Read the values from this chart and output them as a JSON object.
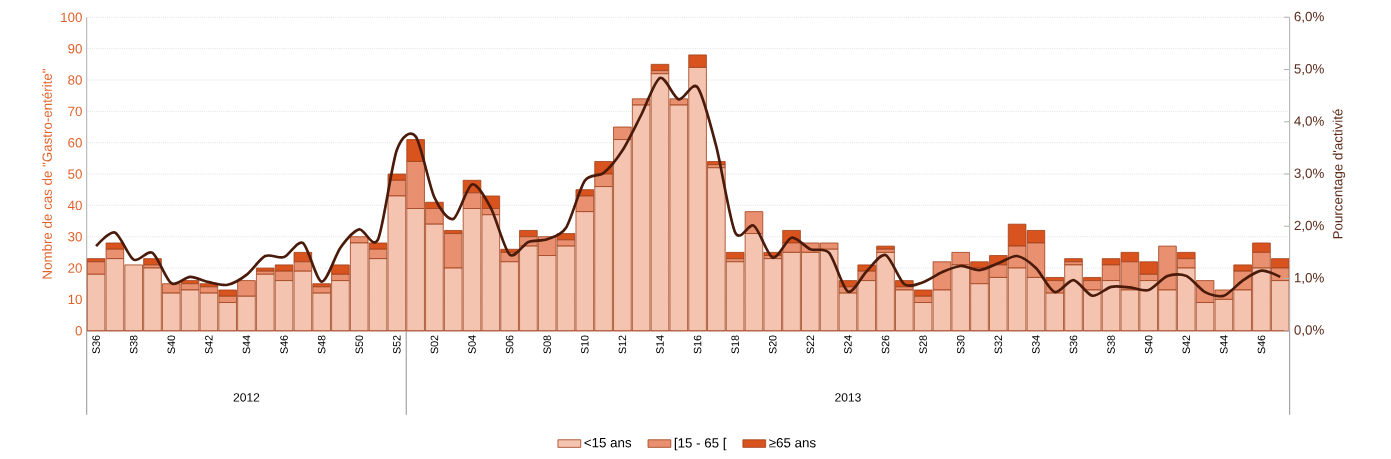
{
  "chart_data": {
    "type": "bar",
    "stacked": true,
    "xlabel": null,
    "ylabel": "Nombre de cas de \"Gastro-entérite\"",
    "y2label": "Pourcentage d'activité",
    "categories": [
      "S36",
      null,
      "S38",
      null,
      "S40",
      null,
      "S42",
      null,
      "S44",
      null,
      "S46",
      null,
      "S48",
      null,
      "S50",
      null,
      "S52",
      null,
      "S02",
      null,
      "S04",
      null,
      "S06",
      null,
      "S08",
      null,
      "S10",
      null,
      "S12",
      null,
      "S14",
      null,
      "S16",
      null,
      "S18",
      null,
      "S20",
      null,
      "S22",
      null,
      "S24",
      null,
      "S26",
      null,
      "S28",
      null,
      "S30",
      null,
      "S32",
      null,
      "S34",
      null,
      "S36",
      null,
      "S38",
      null,
      "S40",
      null,
      "S42",
      null,
      "S44",
      null,
      "S46",
      null
    ],
    "series": [
      {
        "name": "<15 ans",
        "color": "#f4c4b0",
        "values": [
          18,
          23,
          21,
          20,
          12,
          13,
          12,
          9,
          11,
          18,
          16,
          19,
          12,
          16,
          28,
          23,
          43,
          39,
          34,
          20,
          39,
          37,
          22,
          27,
          24,
          27,
          38,
          46,
          61,
          72,
          82,
          72,
          84,
          52,
          22,
          31,
          23,
          25,
          25,
          26,
          12,
          16,
          25,
          13,
          9,
          13,
          21,
          15,
          17,
          20,
          17,
          12,
          21,
          13,
          16,
          13,
          16,
          13,
          20,
          9,
          10,
          13,
          20,
          16
        ]
      },
      {
        "name": "[15 - 65 [",
        "color": "#e8906f",
        "values": [
          4,
          3,
          0,
          1,
          3,
          2,
          2,
          2,
          5,
          1,
          3,
          3,
          2,
          2,
          2,
          3,
          5,
          15,
          5,
          11,
          5,
          2,
          3,
          3,
          6,
          2,
          5,
          4,
          4,
          2,
          1,
          2,
          0,
          1,
          1,
          7,
          1,
          3,
          3,
          2,
          2,
          3,
          1,
          1,
          2,
          9,
          4,
          5,
          4,
          7,
          11,
          4,
          1,
          3,
          5,
          9,
          2,
          14,
          3,
          7,
          3,
          6,
          5,
          4
        ]
      },
      {
        "name": "≥65 ans",
        "color": "#d9531e",
        "values": [
          1,
          2,
          0,
          2,
          0,
          1,
          1,
          2,
          0,
          1,
          2,
          3,
          1,
          3,
          0,
          2,
          2,
          7,
          2,
          1,
          4,
          4,
          1,
          2,
          0,
          2,
          2,
          4,
          0,
          0,
          2,
          0,
          4,
          1,
          2,
          0,
          1,
          4,
          0,
          0,
          2,
          2,
          1,
          2,
          2,
          0,
          0,
          2,
          3,
          7,
          4,
          1,
          1,
          1,
          2,
          3,
          4,
          0,
          2,
          0,
          0,
          2,
          3,
          3
        ]
      },
      {
        "type": "line",
        "axis": "y2",
        "color": "#4a1a0a",
        "values": [
          1.62,
          1.88,
          1.36,
          1.49,
          0.91,
          1.03,
          0.93,
          0.88,
          1.07,
          1.43,
          1.41,
          1.68,
          0.94,
          1.59,
          1.94,
          1.75,
          3.46,
          3.72,
          2.55,
          2.14,
          2.8,
          2.35,
          1.46,
          1.7,
          1.75,
          1.97,
          2.87,
          3.02,
          3.45,
          4.13,
          4.84,
          4.43,
          4.66,
          3.52,
          1.88,
          2.01,
          1.4,
          1.78,
          1.56,
          1.49,
          0.75,
          1.14,
          1.45,
          0.89,
          0.93,
          1.12,
          1.24,
          1.16,
          1.29,
          1.43,
          1.2,
          0.74,
          0.97,
          0.67,
          0.84,
          0.83,
          0.78,
          1.05,
          1.05,
          0.74,
          0.67,
          0.96,
          1.15,
          1.03
        ]
      }
    ],
    "ylim": [
      0,
      100
    ],
    "yticks": [
      0,
      10,
      20,
      30,
      40,
      50,
      60,
      70,
      80,
      90,
      100
    ],
    "y2lim": [
      0,
      6
    ],
    "y2ticks": [
      {
        "value": 0,
        "label": "0,0%"
      },
      {
        "value": 1,
        "label": "1,0%"
      },
      {
        "value": 2,
        "label": "2,0%"
      },
      {
        "value": 3,
        "label": "3,0%"
      },
      {
        "value": 4,
        "label": "4,0%"
      },
      {
        "value": 5,
        "label": "5,0%"
      },
      {
        "value": 6,
        "label": "6,0%"
      }
    ],
    "grid": "y",
    "legend": "bottom",
    "annotations": [
      "2012",
      "2013"
    ]
  }
}
